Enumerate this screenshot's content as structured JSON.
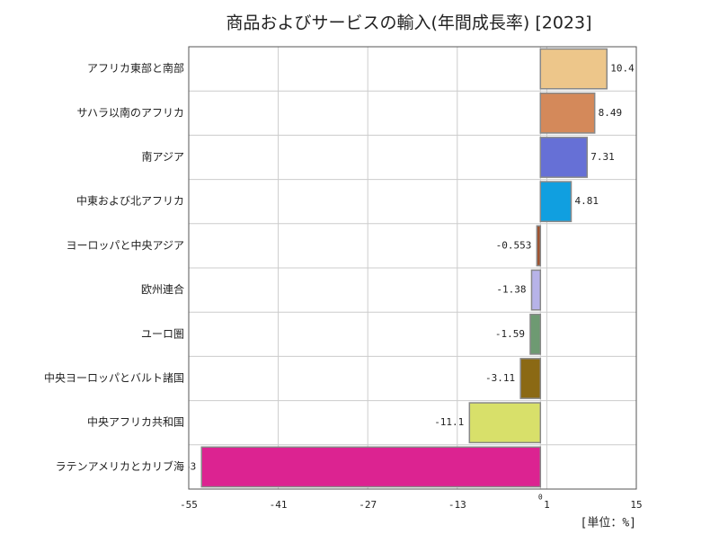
{
  "chart_data": {
    "type": "bar",
    "orientation": "horizontal",
    "title": "商品およびサービスの輸入(年間成長率) [2023]",
    "unit_label": "[単位：%]",
    "categories": [
      "アフリカ東部と南部",
      "サハラ以南のアフリカ",
      "南アジア",
      "中東および北アフリカ",
      "ヨーロッパと中央アジア",
      "欧州連合",
      "ユーロ圏",
      "中央ヨーロッパとバルト諸国",
      "中央アフリカ共和国",
      "ラテンアメリカとカリブ海"
    ],
    "values": [
      10.4,
      8.49,
      7.31,
      4.81,
      -0.553,
      -1.38,
      -1.59,
      -3.11,
      -11.1,
      -53
    ],
    "colors": [
      "#edc68a",
      "#d4895a",
      "#6670d6",
      "#109fe0",
      "#a0522d",
      "#b7b3e8",
      "#6e9a72",
      "#8b6914",
      "#d8e06a",
      "#dc2391"
    ],
    "xlim": [
      -55,
      15
    ],
    "xticks": [
      -55,
      -41,
      -27,
      -13,
      0,
      1,
      15
    ],
    "grid": true
  }
}
